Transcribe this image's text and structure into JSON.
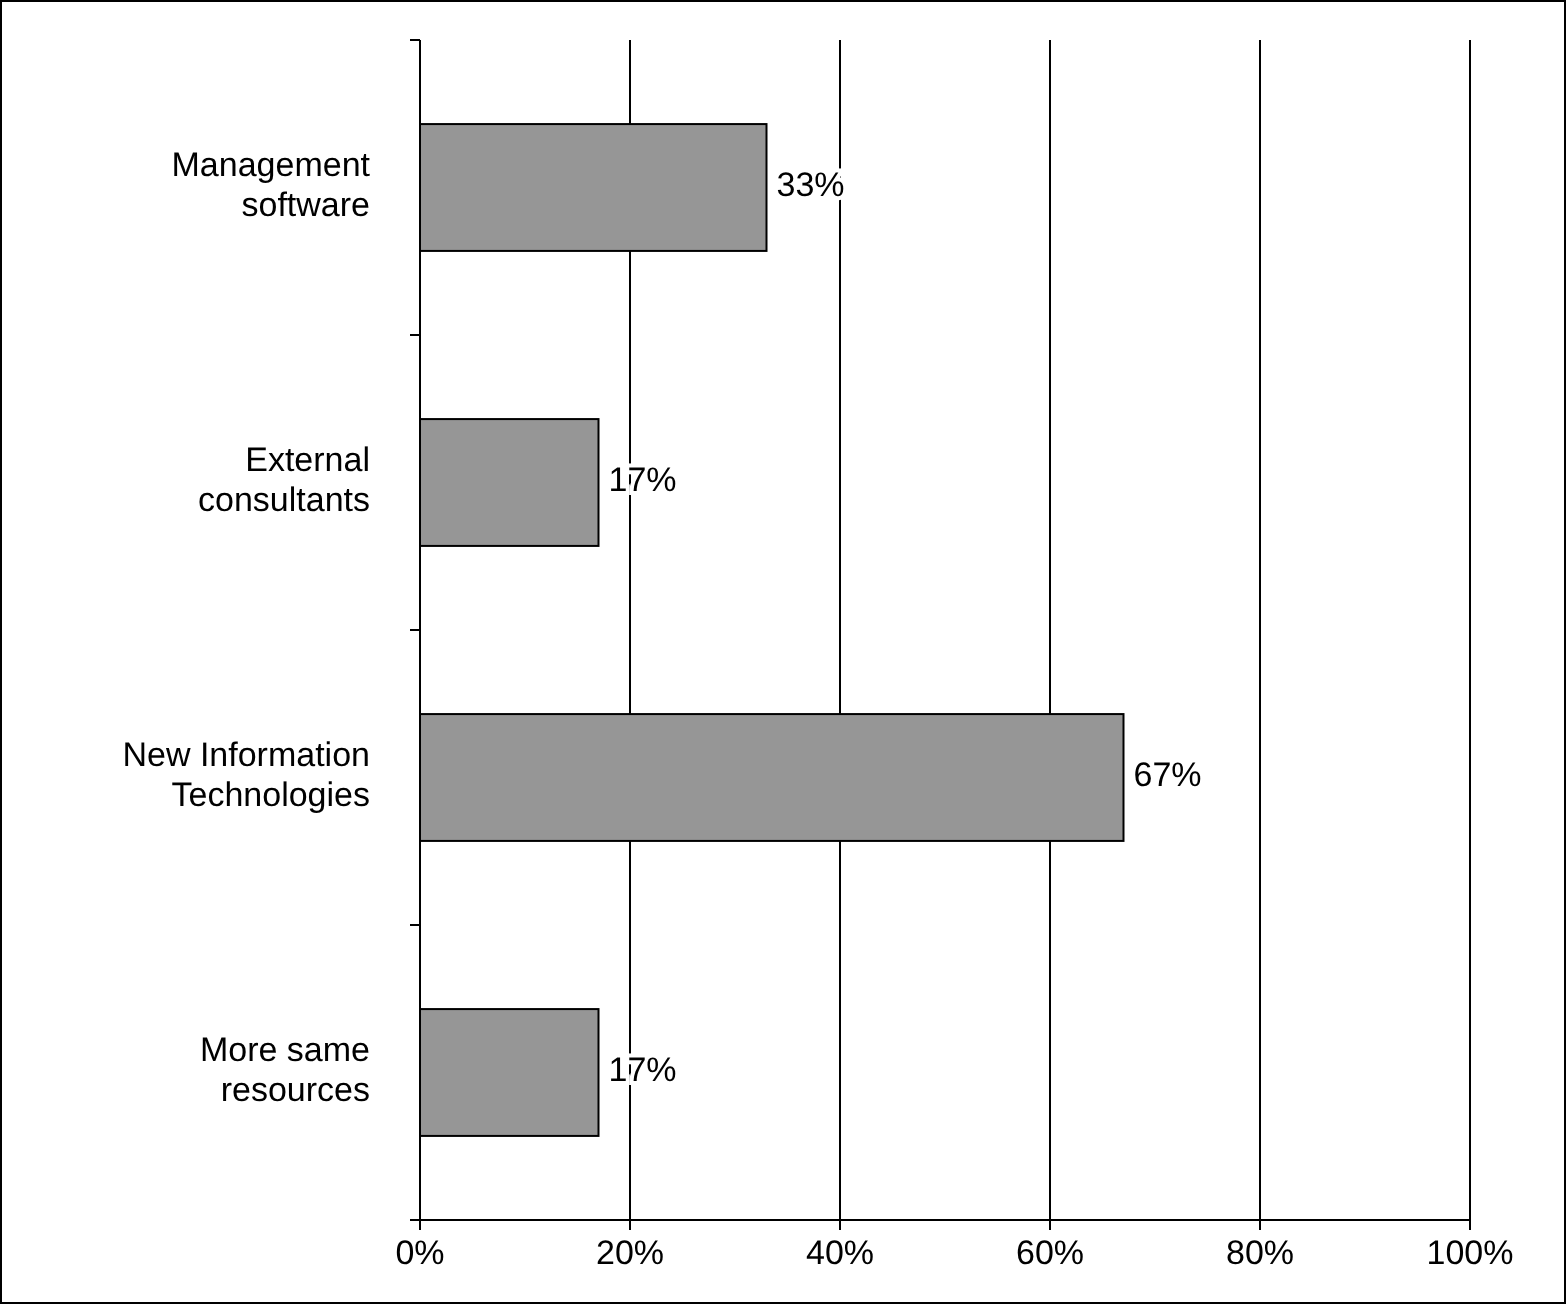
{
  "chart_data": {
    "type": "bar",
    "orientation": "horizontal",
    "categories": [
      "Management software",
      "External consultants",
      "New Information Technologies",
      "More same resources"
    ],
    "values": [
      33,
      17,
      67,
      17
    ],
    "value_labels": [
      "33%",
      "17%",
      "67%",
      "17%"
    ],
    "color": "#969696",
    "xlim": [
      0,
      100
    ],
    "xticks": [
      {
        "value": 0,
        "label": "0%"
      },
      {
        "value": 20,
        "label": "20%"
      },
      {
        "value": 40,
        "label": "40%"
      },
      {
        "value": 60,
        "label": "60%"
      },
      {
        "value": 80,
        "label": "80%"
      },
      {
        "value": 100,
        "label": "100%"
      }
    ],
    "grid": "x"
  }
}
